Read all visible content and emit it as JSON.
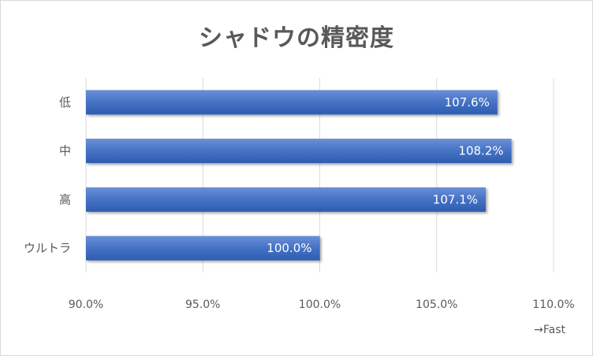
{
  "chart_data": {
    "type": "bar",
    "orientation": "horizontal",
    "title": "シャドウの精密度",
    "categories": [
      "低",
      "中",
      "高",
      "ウルトラ"
    ],
    "values": [
      107.6,
      108.2,
      107.1,
      100.0
    ],
    "data_labels": [
      "107.6%",
      "108.2%",
      "107.1%",
      "100.0%"
    ],
    "xlim": [
      90.0,
      110.0
    ],
    "x_ticks": [
      90.0,
      95.0,
      100.0,
      105.0,
      110.0
    ],
    "x_tick_labels": [
      "90.0%",
      "95.0%",
      "100.0%",
      "105.0%",
      "110.0%"
    ],
    "x_note": "→Fast",
    "grid": true,
    "legend": "none",
    "bar_color": "#4472c4"
  }
}
